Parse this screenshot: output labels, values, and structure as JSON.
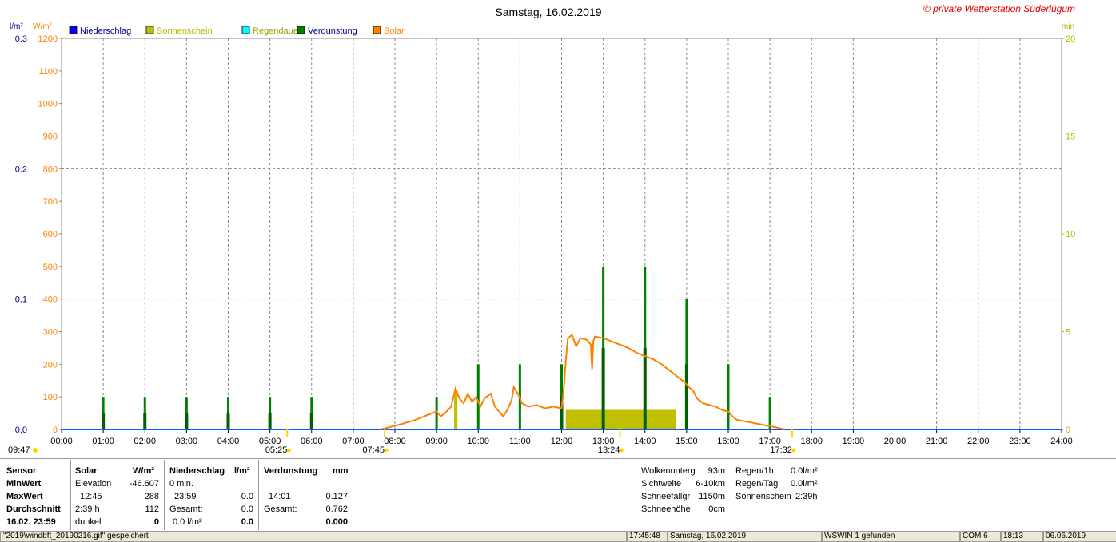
{
  "title": "Samstag, 16.02.2019",
  "copyright": "© private Wetterstation Süderlügum",
  "axes": {
    "left_unit1": "l/m²",
    "left_unit2": "W/m²",
    "right_unit": "min",
    "left1_ticks": [
      "0.3",
      "0.2",
      "0.1",
      "0.0"
    ],
    "left2_ticks": [
      "1200",
      "1100",
      "1000",
      "900",
      "800",
      "700",
      "600",
      "500",
      "400",
      "300",
      "200",
      "100",
      "0"
    ],
    "right_ticks": [
      "20",
      "15",
      "10",
      "5",
      "0"
    ],
    "x_ticks": [
      "00:00",
      "01:00",
      "02:00",
      "03:00",
      "04:00",
      "05:00",
      "06:00",
      "07:00",
      "08:00",
      "09:00",
      "10:00",
      "11:00",
      "12:00",
      "13:00",
      "14:00",
      "15:00",
      "16:00",
      "17:00",
      "18:00",
      "19:00",
      "20:00",
      "21:00",
      "22:00",
      "23:00",
      "24:00"
    ]
  },
  "legend": [
    {
      "label": "Niederschlag",
      "color": "#0000ff",
      "text_color": "#00008b"
    },
    {
      "label": "Sonnenschein",
      "color": "#c0c000",
      "text_color": "#b8b800"
    },
    {
      "label": "Regendauer",
      "color": "#00ffff",
      "text_color": "#a0a000"
    },
    {
      "label": "Verdunstung",
      "color": "#008000",
      "text_color": "#00008b"
    },
    {
      "label": "Solar",
      "color": "#ff8000",
      "text_color": "#ff8000"
    }
  ],
  "markers": {
    "left_time": "09:47",
    "moonrise": "05:25",
    "sunrise": "07:45",
    "noon": "13:24",
    "sunset": "17:32"
  },
  "chart_data": {
    "type": "bar",
    "x_unit": "hour",
    "xlim": [
      0,
      24
    ],
    "ylim_solar": [
      0,
      1200
    ],
    "ylim_precip": [
      0,
      0.3
    ],
    "ylim_min": [
      0,
      20
    ],
    "grid": true,
    "solar_line": [
      [
        7.65,
        0
      ],
      [
        7.9,
        8
      ],
      [
        8.2,
        18
      ],
      [
        8.5,
        30
      ],
      [
        8.8,
        45
      ],
      [
        9.0,
        55
      ],
      [
        9.1,
        40
      ],
      [
        9.2,
        50
      ],
      [
        9.35,
        70
      ],
      [
        9.45,
        125
      ],
      [
        9.55,
        95
      ],
      [
        9.65,
        80
      ],
      [
        9.75,
        110
      ],
      [
        9.85,
        85
      ],
      [
        9.95,
        100
      ],
      [
        10.05,
        70
      ],
      [
        10.15,
        95
      ],
      [
        10.3,
        110
      ],
      [
        10.4,
        70
      ],
      [
        10.5,
        55
      ],
      [
        10.6,
        40
      ],
      [
        10.7,
        60
      ],
      [
        10.8,
        90
      ],
      [
        10.85,
        130
      ],
      [
        10.95,
        110
      ],
      [
        11.05,
        80
      ],
      [
        11.2,
        70
      ],
      [
        11.4,
        75
      ],
      [
        11.6,
        65
      ],
      [
        11.8,
        70
      ],
      [
        12.0,
        65
      ],
      [
        12.05,
        120
      ],
      [
        12.1,
        210
      ],
      [
        12.15,
        280
      ],
      [
        12.25,
        290
      ],
      [
        12.35,
        255
      ],
      [
        12.45,
        280
      ],
      [
        12.6,
        275
      ],
      [
        12.7,
        260
      ],
      [
        12.73,
        185
      ],
      [
        12.76,
        270
      ],
      [
        12.8,
        285
      ],
      [
        13.0,
        280
      ],
      [
        13.2,
        270
      ],
      [
        13.4,
        260
      ],
      [
        13.6,
        250
      ],
      [
        13.8,
        235
      ],
      [
        14.0,
        225
      ],
      [
        14.2,
        215
      ],
      [
        14.4,
        200
      ],
      [
        14.6,
        180
      ],
      [
        14.8,
        160
      ],
      [
        14.95,
        145
      ],
      [
        15.05,
        130
      ],
      [
        15.15,
        120
      ],
      [
        15.25,
        95
      ],
      [
        15.4,
        80
      ],
      [
        15.55,
        75
      ],
      [
        15.7,
        70
      ],
      [
        15.85,
        60
      ],
      [
        16.0,
        55
      ],
      [
        16.1,
        40
      ],
      [
        16.2,
        30
      ],
      [
        16.4,
        25
      ],
      [
        16.6,
        20
      ],
      [
        16.8,
        15
      ],
      [
        17.0,
        10
      ],
      [
        17.2,
        5
      ],
      [
        17.35,
        0
      ]
    ],
    "sunshine_bars": [
      {
        "start": 9.42,
        "end": 9.5,
        "minutes": 2
      },
      {
        "start": 12.1,
        "end": 14.75,
        "minutes": 1
      }
    ],
    "evaporation_bars": [
      {
        "x": 1.0,
        "value": 100
      },
      {
        "x": 2.0,
        "value": 100
      },
      {
        "x": 3.0,
        "value": 100
      },
      {
        "x": 4.0,
        "value": 100
      },
      {
        "x": 5.0,
        "value": 100
      },
      {
        "x": 6.0,
        "value": 100
      },
      {
        "x": 9.0,
        "value": 100
      },
      {
        "x": 10.0,
        "value": 200
      },
      {
        "x": 11.0,
        "value": 200
      },
      {
        "x": 12.0,
        "value": 200
      },
      {
        "x": 13.0,
        "value": 500
      },
      {
        "x": 14.0,
        "value": 500
      },
      {
        "x": 15.0,
        "value": 400
      },
      {
        "x": 16.0,
        "value": 200
      },
      {
        "x": 17.0,
        "value": 100
      }
    ],
    "evaporation_half_bars": [
      {
        "x": 1.0,
        "value": 50
      },
      {
        "x": 2.0,
        "value": 50
      },
      {
        "x": 3.0,
        "value": 50
      },
      {
        "x": 4.0,
        "value": 50
      },
      {
        "x": 5.0,
        "value": 50
      },
      {
        "x": 6.0,
        "value": 50
      },
      {
        "x": 12.0,
        "value": 100
      },
      {
        "x": 13.0,
        "value": 250
      },
      {
        "x": 14.0,
        "value": 250
      },
      {
        "x": 15.0,
        "value": 200
      }
    ]
  },
  "table": {
    "col1": {
      "r0": "Sensor",
      "r1": "MinWert",
      "r2": "MaxWert",
      "r3": "Durchschnitt",
      "r4": "16.02. 23:59"
    },
    "solar": {
      "h": "Solar",
      "hu": "W/m²",
      "r1a": "Elevation",
      "r1b": "-46.607",
      "r2a": "12:45",
      "r2b": "288",
      "r3a": "2:39 h",
      "r3b": "112",
      "r4a": "dunkel",
      "r4b": "0"
    },
    "precip": {
      "h": "Niederschlag",
      "hu": "l/m²",
      "r1a": "0 min.",
      "r1b": "",
      "r2a": "23:59",
      "r2b": "0.0",
      "r3a": "Gesamt:",
      "r3b": "0.0",
      "r4a": "0.0 l/m²",
      "r4b": "0.0"
    },
    "evap": {
      "h": "Verdunstung",
      "hu": "mm",
      "r2a": "14:01",
      "r2b": "0.127",
      "r3a": "Gesamt:",
      "r3b": "0.762",
      "r4b": "0.000"
    },
    "weather": {
      "l1": "Wolkenunterg",
      "v1": "93m",
      "l2": "Sichtweite",
      "v2": "6-10km",
      "l3": "Schneefallgr",
      "v3": "1150m",
      "l4": "Schneehöhe",
      "v4": "0cm"
    },
    "rain": {
      "l1": "Regen/1h",
      "v1": "0.0l/m²",
      "l2": "Regen/Tag",
      "v2": "0.0l/m²",
      "l3": "Sonnenschein",
      "v3": "2:39h"
    }
  },
  "status": {
    "s1": "\"2019\\windbft_20190216.gif\" gespeichert",
    "s2": "17:45:48",
    "s3": "Samstag, 16.02.2019",
    "s4": "WSWIN 1 gefunden",
    "s5": "COM 6",
    "s6": "18:13",
    "s7": "06.06.2019"
  }
}
